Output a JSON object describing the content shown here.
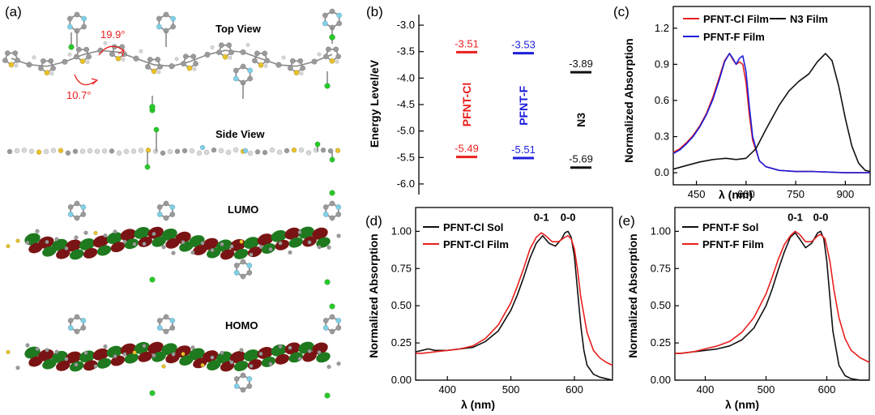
{
  "colors": {
    "red": "#e8201e",
    "blue": "#1d1ddc",
    "black": "#111111",
    "sulfur": "#e8c12a",
    "carbon": "#9a9a9a",
    "hydrogen": "#d8d8d8",
    "fluorine": "#7fd0e8",
    "chlorine": "#28c828",
    "lobe_green": "#1f7a1f",
    "lobe_red": "#7a1414"
  },
  "panel_a": {
    "label": "(a)",
    "views": [
      {
        "id": "top",
        "label": "Top View"
      },
      {
        "id": "side",
        "label": "Side View"
      },
      {
        "id": "lumo",
        "label": "LUMO"
      },
      {
        "id": "homo",
        "label": "HOMO"
      }
    ],
    "angles": [
      "19.9°",
      "10.7°"
    ]
  },
  "chart_data": [
    {
      "id": "b",
      "panel_label": "(b)",
      "type": "scatter",
      "title": "",
      "ylabel": "Energy Level/eV",
      "xlabel": "",
      "ylim": [
        -6.2,
        -2.8
      ],
      "yticks": [
        "-3.0",
        "-3.5",
        "-4.0",
        "-4.5",
        "-5.0",
        "-5.5",
        "-6.0"
      ],
      "ytick_values": [
        -3.0,
        -3.5,
        -4.0,
        -4.5,
        -5.0,
        -5.5,
        -6.0
      ],
      "materials": [
        {
          "name": "PFNT-Cl",
          "lumo": -3.51,
          "homo": -5.49,
          "lumo_label": "-3.51",
          "homo_label": "-5.49",
          "color": "red"
        },
        {
          "name": "PFNT-F",
          "lumo": -3.53,
          "homo": -5.51,
          "lumo_label": "-3.53",
          "homo_label": "-5.51",
          "color": "blue"
        },
        {
          "name": "N3",
          "lumo": -3.89,
          "homo": -5.69,
          "lumo_label": "-3.89",
          "homo_label": "-5.69",
          "color": "black"
        }
      ]
    },
    {
      "id": "c",
      "panel_label": "(c)",
      "type": "line",
      "title": "",
      "xlabel": "λ (nm)",
      "ylabel": "Normalized Absorption",
      "xlim": [
        380,
        975
      ],
      "ylim": [
        -0.1,
        1.38
      ],
      "xticks": [
        "450",
        "600",
        "750",
        "900"
      ],
      "xtick_values": [
        450,
        600,
        750,
        900
      ],
      "yticks": [
        "0.0",
        "0.3",
        "0.6",
        "0.9",
        "1.2"
      ],
      "ytick_values": [
        0.0,
        0.3,
        0.6,
        0.9,
        1.2
      ],
      "legend": "top",
      "series": [
        {
          "name": "PFNT-Cl  Film",
          "color": "red",
          "x": [
            380,
            400,
            420,
            440,
            460,
            480,
            500,
            520,
            535,
            550,
            560,
            570,
            580,
            590,
            600,
            610,
            620,
            640,
            660,
            700,
            750,
            800,
            900,
            975
          ],
          "y": [
            0.17,
            0.2,
            0.25,
            0.31,
            0.39,
            0.49,
            0.63,
            0.8,
            0.93,
            0.99,
            0.94,
            0.9,
            0.92,
            0.9,
            0.75,
            0.48,
            0.27,
            0.1,
            0.05,
            0.02,
            0.01,
            0.01,
            0.0,
            0.0
          ]
        },
        {
          "name": "PFNT-F Film",
          "color": "blue",
          "x": [
            380,
            400,
            420,
            440,
            460,
            480,
            500,
            520,
            535,
            550,
            560,
            570,
            580,
            590,
            600,
            610,
            620,
            640,
            660,
            700,
            750,
            800,
            900,
            975
          ],
          "y": [
            0.16,
            0.19,
            0.24,
            0.3,
            0.38,
            0.48,
            0.61,
            0.78,
            0.92,
            0.99,
            0.95,
            0.9,
            0.95,
            0.97,
            0.84,
            0.55,
            0.3,
            0.1,
            0.05,
            0.02,
            0.01,
            0.01,
            0.0,
            0.0
          ]
        },
        {
          "name": "N3 Film",
          "color": "black",
          "x": [
            380,
            420,
            460,
            500,
            540,
            570,
            600,
            630,
            660,
            700,
            730,
            760,
            790,
            815,
            840,
            860,
            880,
            900,
            920,
            940,
            960,
            975
          ],
          "y": [
            0.03,
            0.06,
            0.09,
            0.11,
            0.12,
            0.11,
            0.12,
            0.2,
            0.36,
            0.56,
            0.68,
            0.76,
            0.82,
            0.92,
            0.99,
            0.93,
            0.72,
            0.45,
            0.22,
            0.08,
            0.02,
            0.01
          ]
        }
      ]
    },
    {
      "id": "d",
      "panel_label": "(d)",
      "type": "line",
      "title": "",
      "xlabel": "λ (nm)",
      "ylabel": "Normalized Absorption",
      "xlim": [
        350,
        660
      ],
      "ylim": [
        0.0,
        1.16
      ],
      "xticks": [
        "400",
        "500",
        "600"
      ],
      "xtick_values": [
        400,
        500,
        600
      ],
      "yticks": [
        "0.00",
        "0.25",
        "0.50",
        "0.75",
        "1.00"
      ],
      "ytick_values": [
        0.0,
        0.25,
        0.5,
        0.75,
        1.0
      ],
      "legend": "top-left",
      "annotations": [
        {
          "text": "0-1",
          "x": 548,
          "y": 1.07
        },
        {
          "text": "0-0",
          "x": 590,
          "y": 1.07
        }
      ],
      "series": [
        {
          "name": "PFNT-Cl Sol",
          "color": "black",
          "x": [
            350,
            360,
            370,
            380,
            400,
            420,
            440,
            460,
            480,
            500,
            510,
            520,
            530,
            540,
            550,
            560,
            570,
            580,
            585,
            590,
            595,
            600,
            605,
            610,
            615,
            620,
            630,
            640,
            650,
            660
          ],
          "y": [
            0.19,
            0.2,
            0.21,
            0.2,
            0.2,
            0.21,
            0.22,
            0.26,
            0.33,
            0.47,
            0.57,
            0.69,
            0.82,
            0.92,
            0.97,
            0.92,
            0.9,
            0.95,
            0.99,
            1.0,
            0.96,
            0.83,
            0.6,
            0.37,
            0.2,
            0.1,
            0.04,
            0.02,
            0.01,
            0.0
          ]
        },
        {
          "name": "PFNT-Cl Film",
          "color": "red",
          "x": [
            350,
            360,
            380,
            400,
            420,
            440,
            460,
            480,
            500,
            510,
            520,
            530,
            540,
            548,
            555,
            565,
            575,
            585,
            590,
            595,
            600,
            605,
            610,
            620,
            630,
            640,
            650,
            660
          ],
          "y": [
            0.18,
            0.18,
            0.19,
            0.2,
            0.21,
            0.23,
            0.28,
            0.37,
            0.52,
            0.63,
            0.75,
            0.88,
            0.96,
            0.99,
            0.97,
            0.93,
            0.93,
            0.96,
            0.97,
            0.95,
            0.88,
            0.74,
            0.56,
            0.32,
            0.2,
            0.15,
            0.12,
            0.1
          ]
        }
      ]
    },
    {
      "id": "e",
      "panel_label": "(e)",
      "type": "line",
      "title": "",
      "xlabel": "λ (nm)",
      "ylabel": "Normalized Absorption",
      "xlim": [
        350,
        670
      ],
      "ylim": [
        0.0,
        1.16
      ],
      "xticks": [
        "400",
        "500",
        "600"
      ],
      "xtick_values": [
        400,
        500,
        600
      ],
      "yticks": [
        "0.00",
        "0.25",
        "0.50",
        "0.75",
        "1.00"
      ],
      "ytick_values": [
        0.0,
        0.25,
        0.5,
        0.75,
        1.0
      ],
      "legend": "top-left",
      "annotations": [
        {
          "text": "0-1",
          "x": 548,
          "y": 1.07
        },
        {
          "text": "0-0",
          "x": 590,
          "y": 1.07
        }
      ],
      "series": [
        {
          "name": "PFNT-F Sol",
          "color": "black",
          "x": [
            350,
            360,
            380,
            400,
            420,
            440,
            460,
            480,
            500,
            510,
            520,
            530,
            540,
            548,
            555,
            565,
            575,
            585,
            590,
            595,
            600,
            605,
            610,
            620,
            630,
            640,
            655,
            670
          ],
          "y": [
            0.18,
            0.18,
            0.19,
            0.2,
            0.21,
            0.23,
            0.27,
            0.35,
            0.5,
            0.61,
            0.74,
            0.86,
            0.96,
            0.99,
            0.95,
            0.89,
            0.92,
            0.99,
            1.0,
            0.95,
            0.8,
            0.56,
            0.33,
            0.1,
            0.03,
            0.01,
            0.0,
            0.0
          ]
        },
        {
          "name": "PFNT-F Film",
          "color": "red",
          "x": [
            350,
            360,
            380,
            400,
            420,
            440,
            460,
            480,
            500,
            510,
            520,
            530,
            540,
            548,
            555,
            565,
            575,
            585,
            590,
            597,
            605,
            612,
            620,
            630,
            640,
            655,
            670
          ],
          "y": [
            0.18,
            0.18,
            0.19,
            0.21,
            0.23,
            0.26,
            0.32,
            0.42,
            0.58,
            0.69,
            0.81,
            0.91,
            0.97,
            1.0,
            0.98,
            0.93,
            0.93,
            0.97,
            0.98,
            0.95,
            0.8,
            0.6,
            0.42,
            0.28,
            0.2,
            0.15,
            0.12
          ]
        }
      ]
    }
  ]
}
